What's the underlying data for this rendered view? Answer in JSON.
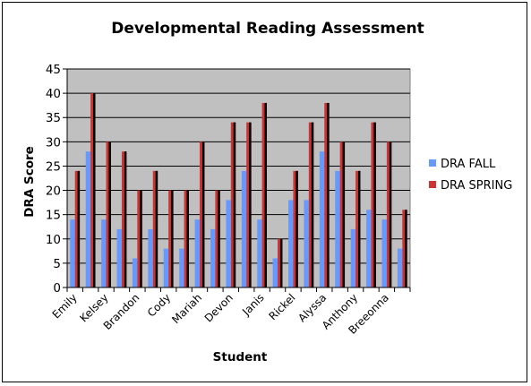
{
  "chart_data": {
    "type": "bar",
    "title": "Developmental Reading Assessment",
    "xlabel": "Student",
    "ylabel": "DRA Score",
    "ylim": [
      0,
      45
    ],
    "yticks": [
      "0",
      "5",
      "10",
      "15",
      "20",
      "25",
      "30",
      "35",
      "40",
      "45"
    ],
    "grid": true,
    "legend_position": "right",
    "categories": [
      "Emily",
      "",
      "Kelsey",
      "",
      "Brandon",
      "",
      "Cody",
      "",
      "Mariah",
      "",
      "Devon",
      "",
      "Janis",
      "",
      "Rickel",
      "",
      "Alyssa",
      "",
      "Anthony",
      "",
      "Breeonna",
      ""
    ],
    "series": [
      {
        "name": "DRA FALL",
        "color": "#6699ff",
        "values": [
          14,
          28,
          14,
          12,
          6,
          12,
          8,
          8,
          14,
          12,
          18,
          24,
          14,
          6,
          18,
          18,
          28,
          24,
          12,
          16,
          14,
          8
        ]
      },
      {
        "name": "DRA SPRING",
        "color": "#cc3333",
        "values": [
          24,
          40,
          30,
          28,
          20,
          24,
          20,
          20,
          30,
          20,
          34,
          34,
          38,
          10,
          24,
          34,
          38,
          30,
          24,
          34,
          30,
          16
        ]
      }
    ],
    "plot_background": "#c0c0c0"
  }
}
